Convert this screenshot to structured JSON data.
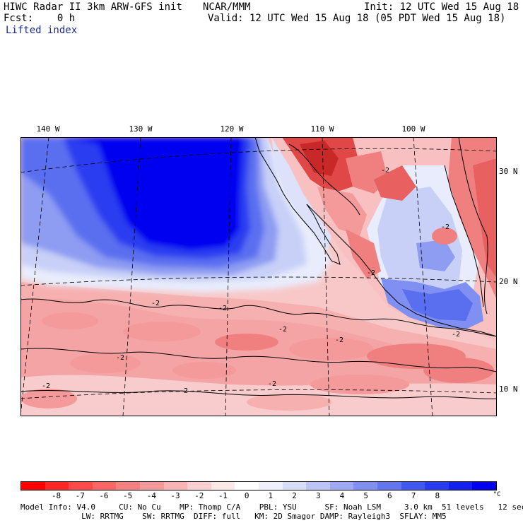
{
  "header": {
    "line1_left": "HIWC Radar II 3km ARW-GFS init",
    "line1_center": "NCAR/MMM",
    "line1_right": "Init: 12 UTC Wed 15 Aug 18",
    "line2_left": "Fcst:    0 h",
    "line2_right": "Valid: 12 UTC Wed 15 Aug 18 (05 PDT Wed 15 Aug 18)",
    "field": "Lifted index"
  },
  "map": {
    "lon_labels": [
      "140 W",
      "130 W",
      "120 W",
      "110 W",
      "100 W"
    ],
    "lat_labels": [
      "30 N",
      "20 N",
      "10 N"
    ],
    "contour_label": "-2",
    "colors": {
      "strong_blue": "#0000f0",
      "mid_blue": "#5a6ef0",
      "light_blue": "#c8d0f8",
      "very_light_blue": "#e8ecfc",
      "light_red": "#f8c8c8",
      "mid_red": "#f49a9a",
      "strong_red": "#e04848",
      "land_line": "#000000"
    }
  },
  "colorbar": {
    "colors": [
      "#ff0000",
      "#ff2626",
      "#ff4a4a",
      "#fa6666",
      "#f48080",
      "#f49a9a",
      "#f8b4b4",
      "#fad0d0",
      "#fde8e8",
      "#ffffff",
      "#eef0fc",
      "#d8ddf8",
      "#bcc4f6",
      "#9eaaf4",
      "#8090f2",
      "#6276f0",
      "#4258f0",
      "#2a3cf0",
      "#1420f0",
      "#0000f0"
    ],
    "tick_labels": [
      "-8",
      "-7",
      "-6",
      "-5",
      "-4",
      "-3",
      "-2",
      "-1",
      "0",
      "1",
      "2",
      "3",
      "4",
      "5",
      "6",
      "7",
      "8"
    ],
    "unit": "°C"
  },
  "footer": {
    "line1": "Model Info: V4.0     CU: No Cu    MP: Thomp C/A    PBL: YSU      SF: Noah LSM     3.0 km  51 levels   12 sec",
    "line2": "             LW: RRTMG    SW: RRTMG  DIFF: full   KM: 2D Smagor DAMP: Rayleigh3  SFLAY: MM5"
  }
}
